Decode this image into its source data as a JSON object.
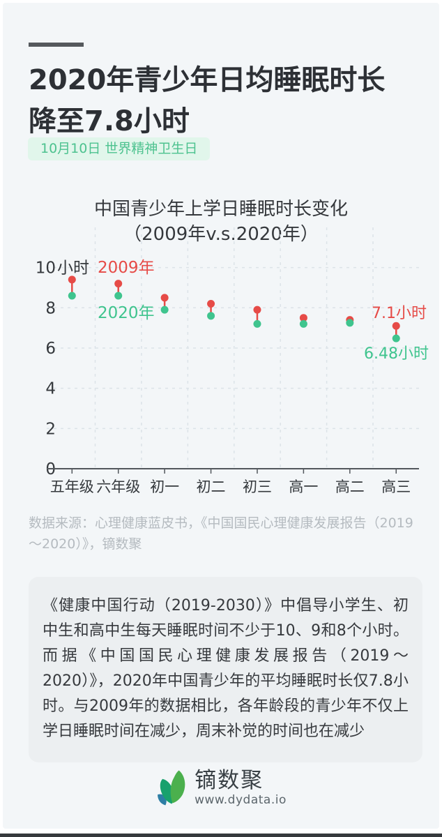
{
  "page": {
    "title_line1": "2020年青少年日均睡眠时长",
    "title_line2": "降至7.8小时",
    "tag": "10月10日 世界精神卫生日",
    "source": "数据来源：心理健康蓝皮书，《中国国民心理健康发展报告（2019～2020）》，镝数聚",
    "paragraph": "《健康中国行动（2019-2030）》中倡导小学生、初中生和高中生每天睡眠时间不少于10、9和8个小时。而据《中国国民心理健康发展报告（2019～2020）》，2020年中国青少年的平均睡眠时长仅7.8小时。与2009年的数据相比，各年龄段的青少年不仅上学日睡眠时间在减少，周末补觉的时间也在减少"
  },
  "footer": {
    "brand": "镝数聚",
    "website": "www.dydata.io"
  },
  "colors": {
    "red": "#e64b47",
    "green": "#3fc48e",
    "grid": "#dce3e8",
    "axis": "#52575c",
    "tick_text": "#34383c",
    "page_bg": "#f3f6f8",
    "tag_bg": "#e1f6eb",
    "box_bg": "#eceff1",
    "bottom_bar": "#35393c"
  },
  "chart_data": {
    "type": "scatter",
    "subtype": "dumbbell",
    "title_line1": "中国青少年上学日睡眠时长变化",
    "title_line2": "（2009年v.s.2020年）",
    "categories": [
      "五年级",
      "六年级",
      "初一",
      "初二",
      "初三",
      "高一",
      "高二",
      "高三"
    ],
    "series": [
      {
        "name": "2009年",
        "color": "#e64b47",
        "values": [
          9.4,
          9.2,
          8.5,
          8.2,
          7.9,
          7.5,
          7.4,
          7.1
        ]
      },
      {
        "name": "2020年",
        "color": "#3fc48e",
        "values": [
          8.6,
          8.6,
          7.9,
          7.6,
          7.2,
          7.2,
          7.25,
          6.48
        ]
      }
    ],
    "annotations": [
      {
        "text": "7.1小时",
        "series": "2009年",
        "category": "高三"
      },
      {
        "text": "6.48小时",
        "series": "2020年",
        "category": "高三"
      }
    ],
    "ylim": [
      0,
      12
    ],
    "yticks": [
      {
        "v": 0,
        "t": "0"
      },
      {
        "v": 2,
        "t": "2"
      },
      {
        "v": 4,
        "t": "4"
      },
      {
        "v": 6,
        "t": "6"
      },
      {
        "v": 8,
        "t": "8"
      },
      {
        "v": 10,
        "t": "10小时"
      }
    ],
    "grid": "dashed",
    "legend_position": "inline-labels",
    "ylabel": "",
    "xlabel": ""
  }
}
